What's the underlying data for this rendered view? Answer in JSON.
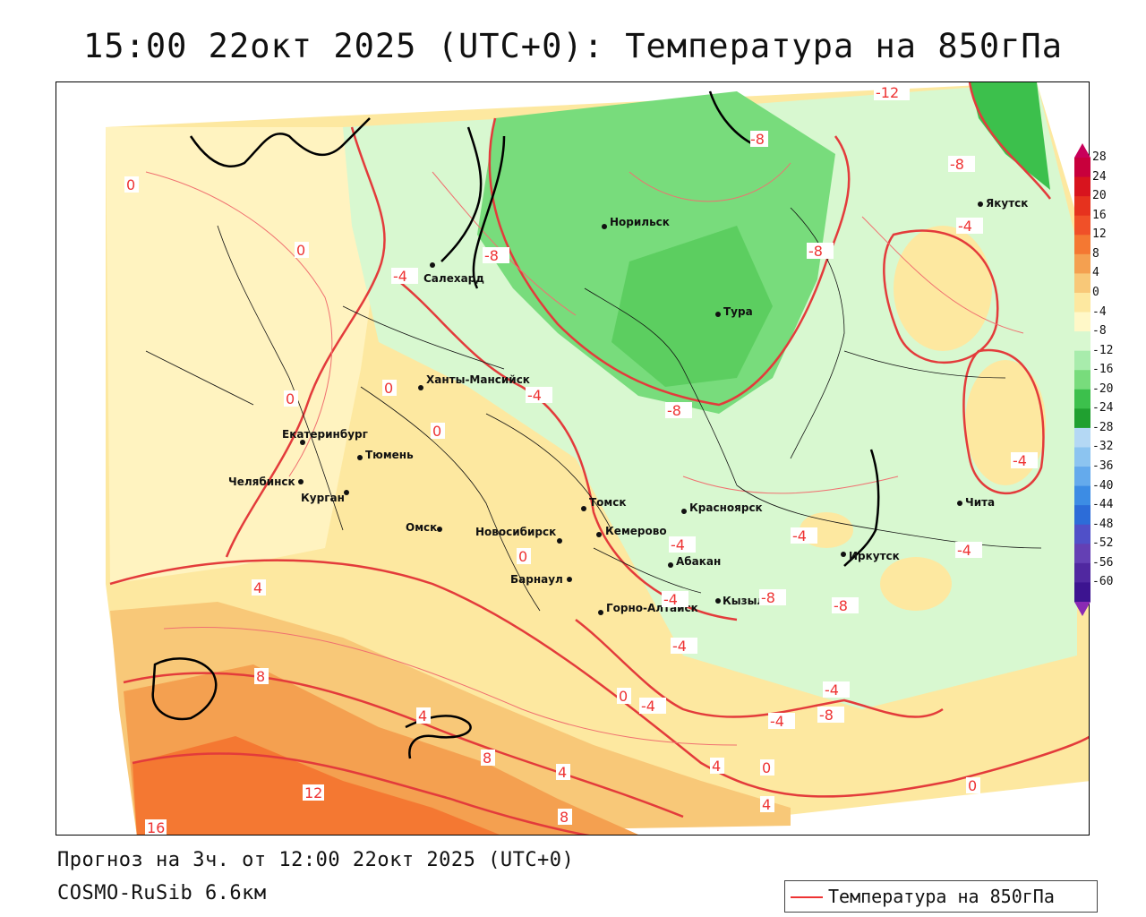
{
  "title": "15:00 22окт 2025 (UTC+0): Температура на 850гПа",
  "footer": {
    "forecast": "Прогноз на 3ч. от 12:00 22окт 2025 (UTC+0)",
    "model": "COSMO-RuSib 6.6км"
  },
  "legend": {
    "label": "Температура на 850гПа",
    "line_color": "#e33b3b"
  },
  "colorbar": {
    "labels": [
      "28",
      "24",
      "20",
      "16",
      "12",
      "8",
      "4",
      "0",
      "-4",
      "-8",
      "-12",
      "-16",
      "-20",
      "-24",
      "-28",
      "-32",
      "-36",
      "-40",
      "-44",
      "-48",
      "-52",
      "-56",
      "-60"
    ],
    "colors": [
      "#c8003c",
      "#d8141e",
      "#e6321e",
      "#f05028",
      "#f47832",
      "#f4a050",
      "#f8c878",
      "#fde8a0",
      "#fff8c8",
      "#d8f8d0",
      "#a8ecac",
      "#78dc7c",
      "#3cc04c",
      "#20a030",
      "#b4d8f4",
      "#8cc4f0",
      "#64aaec",
      "#3c8ce4",
      "#2c6cd8",
      "#5050c8",
      "#6440b4",
      "#5028a0",
      "#3c1490"
    ]
  },
  "cities": [
    {
      "name": "Норильск"
    },
    {
      "name": "Якутск"
    },
    {
      "name": "Салехард"
    },
    {
      "name": "Тура"
    },
    {
      "name": "Ханты-Мансийск"
    },
    {
      "name": "Екатеринбург"
    },
    {
      "name": "Тюмень"
    },
    {
      "name": "Челябинск"
    },
    {
      "name": "Курган"
    },
    {
      "name": "Томск"
    },
    {
      "name": "Красноярск"
    },
    {
      "name": "Омск"
    },
    {
      "name": "Новосибирск"
    },
    {
      "name": "Кемерово"
    },
    {
      "name": "Абакан"
    },
    {
      "name": "Барнаул"
    },
    {
      "name": "Иркутск"
    },
    {
      "name": "Чита"
    },
    {
      "name": "Кызыл"
    },
    {
      "name": "Горно-Алтайск"
    }
  ],
  "isotherm_labels": [
    "-12",
    "-8",
    "-8",
    "-8",
    "-4",
    "-8",
    "-4",
    "-8",
    "-4",
    "0",
    "0",
    "0",
    "0",
    "0",
    "0",
    "-4",
    "-4",
    "-4",
    "-4",
    "-4",
    "-8",
    "-4",
    "-8",
    "-4",
    "-8",
    "-4",
    "-4",
    "0",
    "4",
    "8",
    "4",
    "8",
    "12",
    "16",
    "4",
    "8",
    "4",
    "0",
    "4",
    "0"
  ]
}
